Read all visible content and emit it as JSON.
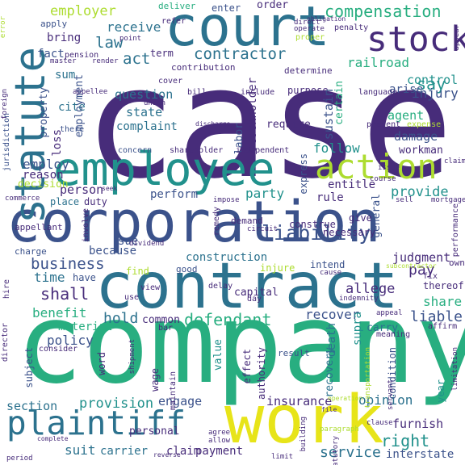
{
  "palette": {
    "purple": "#472c7a",
    "indigo": "#3b528b",
    "blue": "#2c728e",
    "teal": "#21918c",
    "green": "#28ae80",
    "lightgreen": "#5ec962",
    "lime": "#addc30",
    "yellow": "#e7e419"
  },
  "words": [
    {
      "id": "case",
      "text": "case"
    },
    {
      "id": "company",
      "text": "company"
    },
    {
      "id": "corporation",
      "text": "corporation"
    },
    {
      "id": "contract",
      "text": "contract"
    },
    {
      "id": "court",
      "text": "court"
    },
    {
      "id": "employee",
      "text": "employee"
    },
    {
      "id": "work",
      "text": "work"
    },
    {
      "id": "plaintiff",
      "text": "plaintiff"
    },
    {
      "id": "statute",
      "text": "statute"
    },
    {
      "id": "stock",
      "text": "stock"
    },
    {
      "id": "action",
      "text": "action"
    },
    {
      "id": "liability",
      "text": "liability"
    },
    {
      "id": "compensation",
      "text": "compensation"
    },
    {
      "id": "contractor",
      "text": "contractor"
    },
    {
      "id": "employer",
      "text": "employer"
    },
    {
      "id": "law",
      "text": "law"
    },
    {
      "id": "act",
      "text": "act"
    },
    {
      "id": "fact",
      "text": "fact"
    },
    {
      "id": "receive",
      "text": "receive"
    },
    {
      "id": "bring",
      "text": "bring"
    },
    {
      "id": "apply",
      "text": "apply"
    },
    {
      "id": "pension",
      "text": "pension"
    },
    {
      "id": "term",
      "text": "term"
    },
    {
      "id": "railroad",
      "text": "railroad"
    },
    {
      "id": "say",
      "text": "say"
    },
    {
      "id": "control",
      "text": "control"
    },
    {
      "id": "arise",
      "text": "arise"
    },
    {
      "id": "injury",
      "text": "injury"
    },
    {
      "id": "agent",
      "text": "agent"
    },
    {
      "id": "damage",
      "text": "damage"
    },
    {
      "id": "workman",
      "text": "workman"
    },
    {
      "id": "follow",
      "text": "follow"
    },
    {
      "id": "entitle",
      "text": "entitle"
    },
    {
      "id": "provide",
      "text": "provide"
    },
    {
      "id": "rule",
      "text": "rule"
    },
    {
      "id": "party",
      "text": "party"
    },
    {
      "id": "perform",
      "text": "perform"
    },
    {
      "id": "person",
      "text": "person"
    },
    {
      "id": "business",
      "text": "business"
    },
    {
      "id": "time",
      "text": "time"
    },
    {
      "id": "shall",
      "text": "shall"
    },
    {
      "id": "benefit",
      "text": "benefit"
    },
    {
      "id": "hold",
      "text": "hold"
    },
    {
      "id": "common",
      "text": "common"
    },
    {
      "id": "defendant",
      "text": "defendant"
    },
    {
      "id": "construction",
      "text": "construction"
    },
    {
      "id": "because",
      "text": "because"
    },
    {
      "id": "sue",
      "text": "sue"
    },
    {
      "id": "judgment",
      "text": "judgment"
    },
    {
      "id": "pay",
      "text": "pay"
    },
    {
      "id": "share",
      "text": "share"
    },
    {
      "id": "recover",
      "text": "recover"
    },
    {
      "id": "liable",
      "text": "liable"
    },
    {
      "id": "allege",
      "text": "allege"
    },
    {
      "id": "material",
      "text": "material"
    },
    {
      "id": "policy",
      "text": "policy"
    },
    {
      "id": "section",
      "text": "section"
    },
    {
      "id": "provision",
      "text": "provision"
    },
    {
      "id": "engage",
      "text": "engage"
    },
    {
      "id": "insurance",
      "text": "insurance"
    },
    {
      "id": "opinion",
      "text": "opinion"
    },
    {
      "id": "furnish",
      "text": "furnish"
    },
    {
      "id": "right",
      "text": "right"
    },
    {
      "id": "interstate",
      "text": "interstate"
    },
    {
      "id": "suit",
      "text": "suit"
    },
    {
      "id": "carrier",
      "text": "carrier"
    },
    {
      "id": "claim",
      "text": "claim"
    },
    {
      "id": "payment",
      "text": "payment"
    },
    {
      "id": "service",
      "text": "service"
    },
    {
      "id": "employ",
      "text": "employ"
    },
    {
      "id": "reason",
      "text": "reason"
    },
    {
      "id": "question",
      "text": "question"
    },
    {
      "id": "state",
      "text": "state"
    },
    {
      "id": "complaint",
      "text": "complaint"
    },
    {
      "id": "cite",
      "text": "cite"
    },
    {
      "id": "sum",
      "text": "sum"
    },
    {
      "id": "require",
      "text": "require"
    },
    {
      "id": "purpose",
      "text": "purpose"
    },
    {
      "id": "order",
      "text": "order"
    },
    {
      "id": "enter",
      "text": "enter"
    },
    {
      "id": "deliver",
      "text": "deliver"
    },
    {
      "id": "sustain",
      "text": "sustain"
    },
    {
      "id": "certain",
      "text": "certain"
    },
    {
      "id": "employment",
      "text": "employment"
    },
    {
      "id": "loss",
      "text": "loss"
    },
    {
      "id": "property",
      "text": "property"
    },
    {
      "id": "stockholder",
      "text": "stockholder"
    },
    {
      "id": "labor",
      "text": "labor"
    },
    {
      "id": "supra",
      "text": "supra"
    },
    {
      "id": "recovery",
      "text": "recovery"
    },
    {
      "id": "death",
      "text": "death"
    },
    {
      "id": "condition",
      "text": "condition"
    },
    {
      "id": "subject",
      "text": "subject"
    },
    {
      "id": "value",
      "text": "value"
    },
    {
      "id": "wage",
      "text": "wage"
    },
    {
      "id": "authority",
      "text": "authority"
    },
    {
      "id": "express",
      "text": "express"
    },
    {
      "id": "year",
      "text": "year"
    },
    {
      "id": "word",
      "text": "word"
    },
    {
      "id": "effect",
      "text": "effect"
    },
    {
      "id": "general",
      "text": "general"
    },
    {
      "id": "decision",
      "text": "decision"
    },
    {
      "id": "place",
      "text": "place"
    },
    {
      "id": "duty",
      "text": "duty"
    },
    {
      "id": "good",
      "text": "good"
    },
    {
      "id": "find",
      "text": "find"
    },
    {
      "id": "have",
      "text": "have"
    },
    {
      "id": "capital",
      "text": "capital"
    },
    {
      "id": "necessary",
      "text": "necessary"
    },
    {
      "id": "construe",
      "text": "construe"
    },
    {
      "id": "give",
      "text": "give"
    },
    {
      "id": "intend",
      "text": "intend"
    },
    {
      "id": "injure",
      "text": "injure"
    },
    {
      "id": "result",
      "text": "result"
    },
    {
      "id": "carry",
      "text": "carry"
    },
    {
      "id": "personal",
      "text": "personal"
    },
    {
      "id": "contribution",
      "text": "contribution"
    },
    {
      "id": "determine",
      "text": "determine"
    },
    {
      "id": "refer",
      "text": "refer"
    },
    {
      "id": "proper",
      "text": "proper"
    },
    {
      "id": "obligation",
      "text": "obligation"
    },
    {
      "id": "direct",
      "text": "direct"
    },
    {
      "id": "operate",
      "text": "operate"
    },
    {
      "id": "penalty",
      "text": "penalty"
    },
    {
      "id": "language",
      "text": "language"
    },
    {
      "id": "expense",
      "text": "expense"
    },
    {
      "id": "present",
      "text": "present"
    },
    {
      "id": "there",
      "text": "there"
    },
    {
      "id": "master",
      "text": "master"
    },
    {
      "id": "render",
      "text": "render"
    },
    {
      "id": "point",
      "text": "point"
    },
    {
      "id": "cover",
      "text": "cover"
    },
    {
      "id": "bill",
      "text": "bill"
    },
    {
      "id": "include",
      "text": "include"
    },
    {
      "id": "discharge",
      "text": "discharge"
    },
    {
      "id": "union",
      "text": "union"
    },
    {
      "id": "concern",
      "text": "concern"
    },
    {
      "id": "shareholder",
      "text": "shareholder"
    },
    {
      "id": "independent",
      "text": "independent"
    },
    {
      "id": "appellee",
      "text": "appellee"
    },
    {
      "id": "seek",
      "text": "seek"
    },
    {
      "id": "impose",
      "text": "impose"
    },
    {
      "id": "demand",
      "text": "demand"
    },
    {
      "id": "circuit",
      "text": "circuit"
    },
    {
      "id": "remedy",
      "text": "remedy"
    },
    {
      "id": "appellant",
      "text": "appellant"
    },
    {
      "id": "charge",
      "text": "charge"
    },
    {
      "id": "involve",
      "text": "involve"
    },
    {
      "id": "dividend",
      "text": "dividend"
    },
    {
      "id": "delay",
      "text": "delay"
    },
    {
      "id": "day",
      "text": "day"
    },
    {
      "id": "view",
      "text": "view"
    },
    {
      "id": "use",
      "text": "use"
    },
    {
      "id": "cause",
      "text": "cause"
    },
    {
      "id": "indemnity",
      "text": "indemnity"
    },
    {
      "id": "thereof",
      "text": "thereof"
    },
    {
      "id": "owner",
      "text": "owner"
    },
    {
      "id": "fix",
      "text": "fix"
    },
    {
      "id": "affirm",
      "text": "affirm"
    },
    {
      "id": "meaning",
      "text": "meaning"
    },
    {
      "id": "appeal",
      "text": "appeal"
    },
    {
      "id": "bar",
      "text": "bar"
    },
    {
      "id": "consider",
      "text": "consider"
    },
    {
      "id": "maintain",
      "text": "maintain"
    },
    {
      "id": "shipment",
      "text": "shipment"
    },
    {
      "id": "transportation",
      "text": "transportation"
    },
    {
      "id": "paragraph",
      "text": "paragraph"
    },
    {
      "id": "building",
      "text": "building"
    },
    {
      "id": "servant",
      "text": "servant"
    },
    {
      "id": "limitation",
      "text": "limitation"
    },
    {
      "id": "statutory",
      "text": "statutory"
    },
    {
      "id": "clause",
      "text": "clause"
    },
    {
      "id": "agree",
      "text": "agree"
    },
    {
      "id": "allow",
      "text": "allow"
    },
    {
      "id": "reverse",
      "text": "reverse"
    },
    {
      "id": "limit",
      "text": "limit"
    },
    {
      "id": "period",
      "text": "period"
    },
    {
      "id": "complete",
      "text": "complete"
    },
    {
      "id": "issue",
      "text": "issue"
    },
    {
      "id": "operation",
      "text": "operation"
    },
    {
      "id": "file",
      "text": "file"
    },
    {
      "id": "subcontractor",
      "text": "subcontractor"
    },
    {
      "id": "error",
      "text": "error"
    },
    {
      "id": "foreign",
      "text": "foreign"
    },
    {
      "id": "jurisdiction",
      "text": "jurisdiction"
    },
    {
      "id": "commerce",
      "text": "commerce"
    },
    {
      "id": "hire",
      "text": "hire"
    },
    {
      "id": "director",
      "text": "director"
    },
    {
      "id": "course",
      "text": "course"
    },
    {
      "id": "claimant",
      "text": "claimant"
    },
    {
      "id": "sell",
      "text": "sell"
    },
    {
      "id": "mortgage",
      "text": "mortgage"
    },
    {
      "id": "performance",
      "text": "performance"
    },
    {
      "id": "appear",
      "text": "appear"
    }
  ]
}
